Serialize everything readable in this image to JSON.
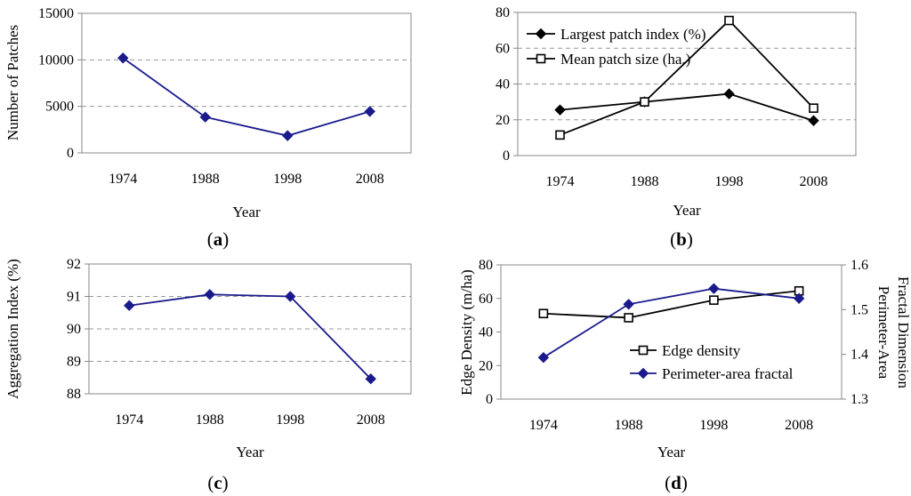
{
  "chart_data": [
    {
      "panel": "a",
      "caption_letter": "a",
      "type": "line",
      "categories": [
        "1974",
        "1988",
        "1998",
        "2008"
      ],
      "xlabel": "Year",
      "ylabel": "Number of Patches",
      "ylim": [
        0,
        15000
      ],
      "yticks": [
        0,
        5000,
        10000,
        15000
      ],
      "grid": true,
      "series": [
        {
          "name": "Number of Patches",
          "marker": "diamond",
          "color": "#1a1a8c",
          "values": [
            10200,
            3850,
            1850,
            4450
          ]
        }
      ]
    },
    {
      "panel": "b",
      "caption_letter": "b",
      "type": "line",
      "categories": [
        "1974",
        "1988",
        "1998",
        "2008"
      ],
      "xlabel": "Year",
      "ylabel": "",
      "ylim": [
        0,
        80
      ],
      "yticks": [
        0,
        20,
        40,
        60,
        80
      ],
      "grid": true,
      "legend_position": "top-left",
      "series": [
        {
          "name": "Largest patch index (%)",
          "marker": "diamond",
          "color": "#000000",
          "values": [
            25.5,
            30,
            34.5,
            19.5
          ]
        },
        {
          "name": "Mean patch size (ha.)",
          "marker": "square-open",
          "color": "#000000",
          "values": [
            11.5,
            30,
            75.5,
            26.5
          ]
        }
      ]
    },
    {
      "panel": "c",
      "caption_letter": "c",
      "type": "line",
      "categories": [
        "1974",
        "1988",
        "1998",
        "2008"
      ],
      "xlabel": "Year",
      "ylabel": "Aggregation Index (%)",
      "ylim": [
        88,
        92
      ],
      "yticks": [
        88,
        89,
        90,
        91,
        92
      ],
      "grid": true,
      "series": [
        {
          "name": "Aggregation Index (%)",
          "marker": "diamond",
          "color": "#1a1a8c",
          "values": [
            90.72,
            91.06,
            91.0,
            88.46
          ]
        }
      ]
    },
    {
      "panel": "d",
      "caption_letter": "d",
      "type": "line",
      "categories": [
        "1974",
        "1988",
        "1998",
        "2008"
      ],
      "xlabel": "Year",
      "ylabel": "Edge Density (m/ha)",
      "ylabel_right": [
        "Perimeter-Area",
        "Fractal Dimension"
      ],
      "ylim": [
        0,
        80
      ],
      "yticks": [
        0,
        20,
        40,
        60,
        80
      ],
      "ylim_right": [
        1.3,
        1.6
      ],
      "yticks_right": [
        1.3,
        1.4,
        1.5,
        1.6
      ],
      "yticks_right_labels": [
        "1.3",
        "1.4",
        "1.5",
        "1.6"
      ],
      "grid": false,
      "legend_position": "bottom-right",
      "series": [
        {
          "name": "Edge density",
          "axis": "left",
          "marker": "square-open",
          "color": "#000000",
          "values": [
            51,
            48.5,
            59,
            64.5
          ]
        },
        {
          "name": "Perimeter-area fractal",
          "axis": "right",
          "marker": "diamond",
          "color": "#1a1a8c",
          "values": [
            1.393,
            1.512,
            1.547,
            1.525
          ]
        }
      ]
    }
  ]
}
